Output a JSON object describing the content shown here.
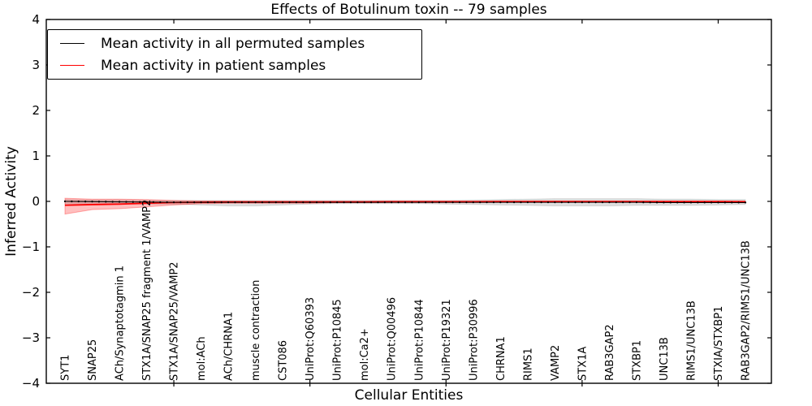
{
  "figure": {
    "title": "Effects of Botulinum toxin -- 79 samples",
    "xlabel": "Cellular Entities",
    "ylabel": "Inferred Activity"
  },
  "legend": {
    "position": "upper left",
    "entries": [
      {
        "label": "Mean activity in all permuted samples",
        "color": "#000000"
      },
      {
        "label": "Mean activity in patient samples",
        "color": "#ff0000"
      }
    ]
  },
  "colors": {
    "background": "#ffffff",
    "axis": "#000000",
    "permuted_line": "#000000",
    "patient_line": "#ff0000",
    "permuted_band": "rgba(0,0,0,0.13)",
    "permuted_band_edge": "rgba(0,0,0,0.10)",
    "patient_band": "rgba(255,0,0,0.25)",
    "patient_band_edge": "rgba(255,0,0,0.30)"
  },
  "chart_data": {
    "type": "line",
    "title": "Effects of Botulinum toxin -- 79 samples",
    "xlabel": "Cellular Entities",
    "ylabel": "Inferred Activity",
    "ylim": [
      -4,
      4
    ],
    "yticks": [
      4,
      3,
      2,
      1,
      0,
      -1,
      -2,
      -3,
      -4
    ],
    "xticks": [
      5,
      10,
      15,
      20,
      25
    ],
    "grid": false,
    "legend_position": "upper left",
    "categories": [
      "SYT1",
      "SNAP25",
      "ACh/Synaptotagmin 1",
      "STX1A/SNAP25 fragment 1/VAMP2",
      "STX1A/SNAP25/VAMP2",
      "mol:ACh",
      "ACh/CHRNA1",
      "muscle contraction",
      "CST086",
      "UniProt:Q60393",
      "UniProt:P10845",
      "mol:Ca2+",
      "UniProt:Q00496",
      "UniProt:P10844",
      "UniProt:P19321",
      "UniProt:P30996",
      "CHRNA1",
      "RIMS1",
      "VAMP2",
      "STX1A",
      "RAB3GAP2",
      "STXBP1",
      "UNC13B",
      "RIMS1/UNC13B",
      "STXIA/STXBP1",
      "RAB3GAP2/RIMS1/UNC13B"
    ],
    "series": [
      {
        "name": "Mean activity in all permuted samples",
        "color": "#000000",
        "style": "solid_with_point_markers",
        "values": [
          0.0,
          -0.005,
          -0.01,
          -0.015,
          -0.02,
          -0.02,
          -0.02,
          -0.02,
          -0.02,
          -0.02,
          -0.02,
          -0.02,
          -0.02,
          -0.02,
          -0.02,
          -0.02,
          -0.02,
          -0.02,
          -0.02,
          -0.02,
          -0.02,
          -0.02,
          -0.025,
          -0.025,
          -0.025,
          -0.025
        ]
      },
      {
        "name": "Mean activity in patient samples",
        "color": "#ff0000",
        "style": "solid",
        "values": [
          -0.085,
          -0.07,
          -0.06,
          -0.04,
          -0.025,
          -0.02,
          -0.015,
          -0.015,
          -0.015,
          -0.015,
          -0.015,
          -0.015,
          -0.01,
          -0.01,
          -0.01,
          -0.01,
          -0.005,
          -0.005,
          -0.005,
          -0.005,
          -0.005,
          -0.005,
          -0.005,
          -0.005,
          -0.005,
          -0.01
        ]
      }
    ],
    "bands": [
      {
        "name": "permuted-samples-confidence-band",
        "upper": [
          0.04,
          0.03,
          0.03,
          0.02,
          0.02,
          0.02,
          0.02,
          0.02,
          0.02,
          0.02,
          0.02,
          0.02,
          0.02,
          0.02,
          0.02,
          0.03,
          0.04,
          0.05,
          0.06,
          0.06,
          0.06,
          0.06,
          0.05,
          0.05,
          0.04,
          0.04
        ],
        "lower": [
          -0.08,
          -0.07,
          -0.06,
          -0.06,
          -0.06,
          -0.08,
          -0.1,
          -0.1,
          -0.08,
          -0.06,
          -0.05,
          -0.05,
          -0.05,
          -0.05,
          -0.06,
          -0.07,
          -0.08,
          -0.09,
          -0.1,
          -0.1,
          -0.1,
          -0.09,
          -0.09,
          -0.09,
          -0.08,
          -0.07
        ]
      },
      {
        "name": "patient-samples-confidence-band",
        "upper": [
          0.07,
          0.05,
          0.05,
          0.04,
          0.02,
          0.01,
          0.01,
          0.01,
          0.01,
          0.01,
          0.01,
          0.01,
          0.01,
          0.01,
          0.01,
          0.01,
          0.01,
          0.01,
          0.01,
          0.01,
          0.01,
          0.01,
          0.01,
          0.01,
          0.01,
          0.01
        ],
        "lower": [
          -0.28,
          -0.18,
          -0.16,
          -0.12,
          -0.08,
          -0.05,
          -0.04,
          -0.04,
          -0.04,
          -0.04,
          -0.03,
          -0.03,
          -0.03,
          -0.03,
          -0.03,
          -0.03,
          -0.02,
          -0.02,
          -0.02,
          -0.02,
          -0.02,
          -0.02,
          -0.02,
          -0.02,
          -0.02,
          -0.03
        ]
      }
    ]
  }
}
